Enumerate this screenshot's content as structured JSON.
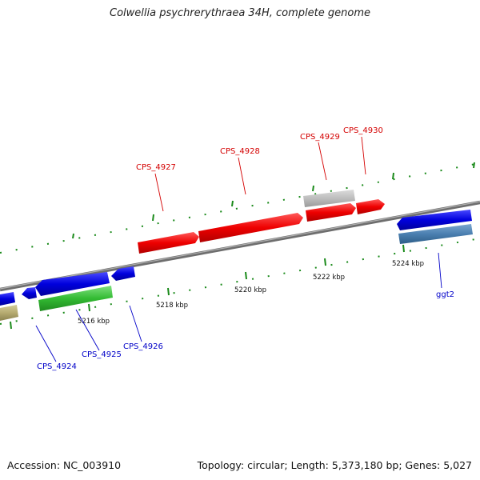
{
  "title": "Colwellia psychrerythraea 34H, complete genome",
  "footer": {
    "accession": "Accession: NC_003910",
    "summary": "Topology: circular; Length: 5,373,180 bp; Genes: 5,027"
  },
  "scale_labels": [
    "5216 kbp",
    "5218 kbp",
    "5220 kbp",
    "5222 kbp",
    "5224 kbp"
  ],
  "gene_labels": {
    "cps4927": "CPS_4927",
    "cps4928": "CPS_4928",
    "cps4929": "CPS_4929",
    "cps4930": "CPS_4930",
    "cps4924": "CPS_4924",
    "cps4925": "CPS_4925",
    "cps4926": "CPS_4926",
    "ggt2": "ggt2"
  },
  "colors": {
    "forward_gene": "#ee0000",
    "reverse_gene": "#0000dd",
    "backbone": "#888888",
    "tick": "#1a8a1a",
    "rna_gene": "#33bb33",
    "pseudo_gene": "#b8b8b8",
    "olive_feature": "#b5aa70",
    "steel_feature": "#4a7fb0"
  }
}
